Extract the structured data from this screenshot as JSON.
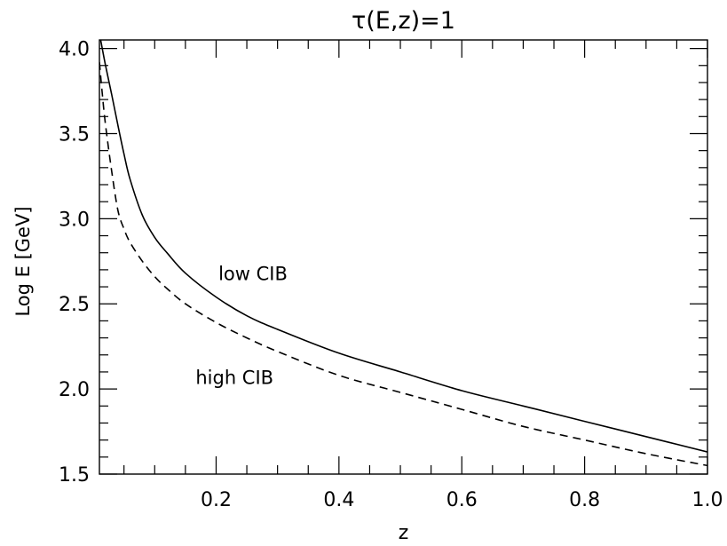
{
  "chart_data": {
    "type": "line",
    "title": "τ(E,z)=1",
    "xlabel": "z",
    "ylabel": "Log E [GeV]",
    "xlim": [
      0.01,
      1.0
    ],
    "ylim": [
      1.5,
      4.05
    ],
    "xticks": [
      0.2,
      0.4,
      0.6,
      0.8,
      1.0
    ],
    "xtick_labels": [
      "0.2",
      "0.4",
      "0.6",
      "0.8",
      "1.0"
    ],
    "yticks": [
      1.5,
      2.0,
      2.5,
      3.0,
      3.5,
      4.0
    ],
    "ytick_labels": [
      "1.5",
      "2.0",
      "2.5",
      "3.0",
      "3.5",
      "4.0"
    ],
    "grid": false,
    "legend": "none",
    "series": [
      {
        "name": "low CIB",
        "style": "solid",
        "color": "#000000",
        "x": [
          0.012,
          0.02,
          0.03,
          0.04,
          0.05,
          0.06,
          0.08,
          0.1,
          0.12,
          0.15,
          0.2,
          0.25,
          0.3,
          0.4,
          0.5,
          0.6,
          0.7,
          0.8,
          0.9,
          1.0
        ],
        "y": [
          4.05,
          3.9,
          3.73,
          3.55,
          3.38,
          3.23,
          3.02,
          2.89,
          2.8,
          2.68,
          2.54,
          2.43,
          2.35,
          2.21,
          2.1,
          1.99,
          1.9,
          1.81,
          1.72,
          1.63
        ]
      },
      {
        "name": "high CIB",
        "style": "dashed",
        "color": "#000000",
        "x": [
          0.01,
          0.015,
          0.02,
          0.03,
          0.04,
          0.05,
          0.06,
          0.08,
          0.1,
          0.12,
          0.15,
          0.2,
          0.25,
          0.3,
          0.4,
          0.5,
          0.6,
          0.7,
          0.8,
          0.9,
          1.0
        ],
        "y": [
          3.92,
          3.72,
          3.55,
          3.28,
          3.05,
          2.94,
          2.86,
          2.75,
          2.66,
          2.59,
          2.5,
          2.39,
          2.3,
          2.22,
          2.08,
          1.98,
          1.88,
          1.78,
          1.7,
          1.62,
          1.55
        ]
      }
    ],
    "annotations": [
      {
        "text": "low CIB",
        "x": 0.26,
        "y": 2.64
      },
      {
        "text": "high CIB",
        "x": 0.23,
        "y": 2.03
      }
    ]
  }
}
